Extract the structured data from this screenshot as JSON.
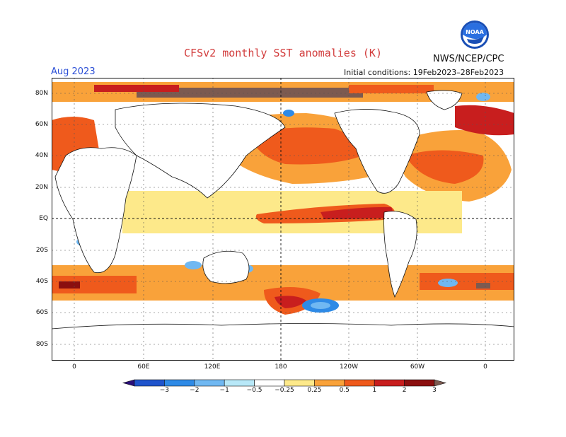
{
  "header": {
    "title": "CFSv2 monthly SST anomalies (K)",
    "agency": "NWS/NCEP/CPC",
    "valid_month": "Aug 2023",
    "initial_conditions": "Initial conditions: 19Feb2023–28Feb2023",
    "logo_text": "NOAA"
  },
  "axes": {
    "lat_labels": [
      "80N",
      "60N",
      "40N",
      "20N",
      "EQ",
      "20S",
      "40S",
      "60S",
      "80S"
    ],
    "lon_labels": [
      "0",
      "60E",
      "120E",
      "180",
      "120W",
      "60W",
      "0"
    ]
  },
  "colorbar": {
    "labels": [
      "−3",
      "−2",
      "−1",
      "−0.5",
      "−0.25",
      "0.25",
      "0.5",
      "1",
      "2",
      "3"
    ],
    "colors": [
      "#2a0f7a",
      "#1f54cc",
      "#2e8ae6",
      "#70b8f2",
      "#b8e8f8",
      "#ffffff",
      "#fde98a",
      "#f9a23a",
      "#ef5a1c",
      "#c81e1e",
      "#8b0f0f",
      "#7c5a50"
    ]
  }
}
